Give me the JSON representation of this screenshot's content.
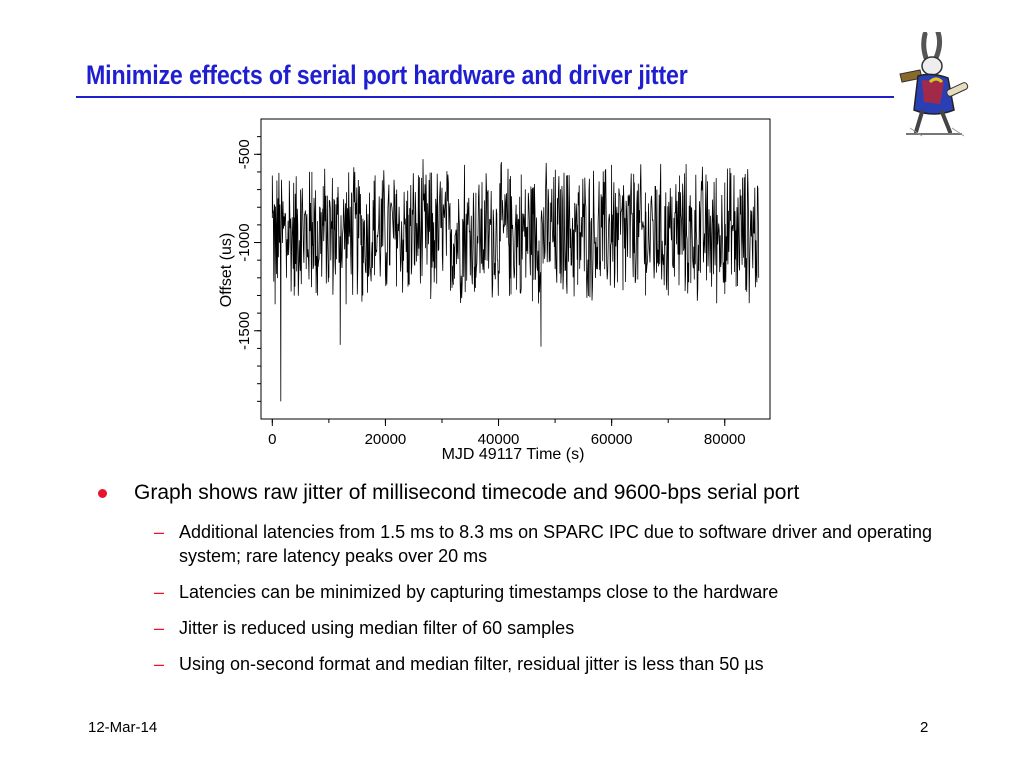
{
  "slide": {
    "title": "Minimize effects of serial port hardware and driver jitter",
    "footer_date": "12-Mar-14",
    "page_number": "2",
    "accent_color": "#1f1fd0",
    "bullet_color": "#e8142d"
  },
  "bullets": [
    {
      "text": "Graph shows raw jitter of millisecond timecode and 9600-bps serial port",
      "sub": [
        {
          "text": "Additional latencies from 1.5 ms to 8.3 ms on SPARC IPC due to software driver and operating system; rare latency peaks over 20 ms"
        },
        {
          "text": "Latencies can be minimized by capturing timestamps close to the hardware"
        },
        {
          "text": "Jitter is reduced using median filter of 60 samples"
        },
        {
          "text": "Using on-second format and median filter, residual jitter is less than 50 µs"
        }
      ]
    }
  ],
  "chart_data": {
    "type": "line",
    "xlabel": "MJD 49117 Time (s)",
    "ylabel": "Offset (us)",
    "x_ticks": [
      "0",
      "20000",
      "40000",
      "60000",
      "80000"
    ],
    "y_ticks": [
      "-500",
      "-1000",
      "-1500"
    ],
    "xlim": [
      -2000,
      88000
    ],
    "ylim": [
      -2000,
      -300
    ],
    "series": [
      {
        "x": [
          0,
          500,
          1000,
          1500,
          2000,
          2500,
          3000,
          4000,
          5000,
          6000,
          7000,
          8000,
          9000,
          10000,
          11000,
          12000,
          14000,
          16000,
          18000,
          20000,
          22000,
          24000,
          26000,
          28000,
          30000,
          32000,
          34000,
          36000,
          38000,
          40000,
          42000,
          44000,
          46000,
          47500,
          48000,
          50000,
          52000,
          54000,
          56000,
          58000,
          60000,
          62000,
          64000,
          66000,
          68000,
          70000,
          72000,
          74000,
          76000,
          78000,
          80000,
          82000,
          84000,
          86000
        ],
        "y": [
          -620,
          -1350,
          -750,
          -1900,
          -900,
          -1200,
          -650,
          -1250,
          -700,
          -1150,
          -600,
          -1300,
          -680,
          -1200,
          -760,
          -1580,
          -720,
          -1300,
          -650,
          -1180,
          -700,
          -1250,
          -630,
          -1320,
          -690,
          -1240,
          -560,
          -1200,
          -720,
          -1160,
          -640,
          -1260,
          -690,
          -1590,
          -800,
          -1150,
          -620,
          -1240,
          -700,
          -1190,
          -560,
          -1270,
          -660,
          -1300,
          -700,
          -1210,
          -620,
          -1230,
          -680,
          -1180,
          -660,
          -1250,
          -700,
          -1200
        ]
      }
    ]
  }
}
